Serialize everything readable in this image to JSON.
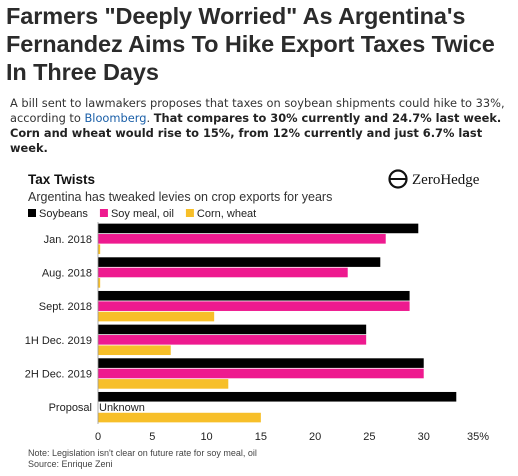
{
  "article": {
    "headline": "Farmers \"Deeply Worried\" As Argentina's Fernandez Aims To Hike Export Taxes Twice In Three Days",
    "summary_plain_1": "A bill sent to lawmakers proposes that taxes on soybean shipments could hike to 33%, according to ",
    "summary_link": "Bloomberg",
    "summary_plain_2": ". ",
    "summary_bold": "That compares to 30% currently and 24.7% last week. Corn and wheat would rise to 15%, from 12% currently and just 6.7% last week."
  },
  "colors": {
    "soybeans": "#000000",
    "soy_meal_oil": "#ee1a8f",
    "corn_wheat": "#f7bf29"
  },
  "chart_data": {
    "type": "bar",
    "orientation": "horizontal",
    "title": "Tax Twists",
    "subtitle": "Argentina has tweaked levies on crop exports for years",
    "logo_text": "ZeroHedge",
    "categories": [
      "Jan. 2018",
      "Aug. 2018",
      "Sept. 2018",
      "1H Dec. 2019",
      "2H Dec. 2019",
      "Proposal"
    ],
    "series": [
      {
        "name": "Soybeans",
        "values": [
          29.5,
          26,
          28.7,
          24.7,
          30,
          33
        ]
      },
      {
        "name": "Soy meal, oil",
        "values": [
          26.5,
          23,
          28.7,
          24.7,
          30,
          null
        ]
      },
      {
        "name": "Corn, wheat",
        "values": [
          0.2,
          0.2,
          10.7,
          6.7,
          12,
          15
        ]
      }
    ],
    "annotations": [
      {
        "category": "Proposal",
        "series": "Soy meal, oil",
        "text": "Unknown"
      }
    ],
    "xlim": [
      0,
      35
    ],
    "x_ticks": [
      "0",
      "5",
      "10",
      "15",
      "20",
      "25",
      "30",
      "35%"
    ],
    "grid": false,
    "legend": "top-left",
    "footnote": "Note: Legislation isn't clear on future rate for soy meal, oil",
    "source": "Source: Enrique Zeni"
  }
}
